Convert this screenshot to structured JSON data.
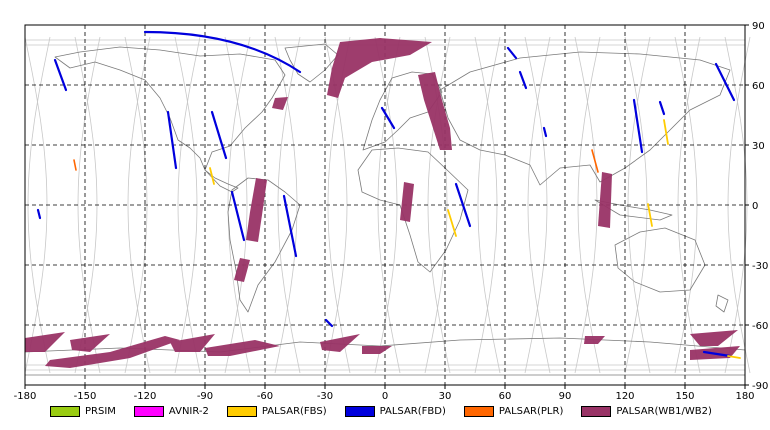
{
  "map": {
    "x_range": [
      -180,
      180
    ],
    "y_range": [
      -90,
      90
    ],
    "x_ticks": [
      "-180",
      "-150",
      "-120",
      "-90",
      "-60",
      "-30",
      "0",
      "30",
      "60",
      "90",
      "120",
      "150",
      "180"
    ],
    "y_ticks": [
      "90",
      "60",
      "30",
      "0",
      "-30",
      "-60",
      "-90"
    ],
    "grid": "dashed"
  },
  "legend": [
    {
      "key": "prsim",
      "label": "PRSIM",
      "color": "#99cc11"
    },
    {
      "key": "avnir2",
      "label": "AVNIR-2",
      "color": "#ff00ff"
    },
    {
      "key": "fbs",
      "label": "PALSAR(FBS)",
      "color": "#ffcc00"
    },
    {
      "key": "fbd",
      "label": "PALSAR(FBD)",
      "color": "#0000dd"
    },
    {
      "key": "plr",
      "label": "PALSAR(PLR)",
      "color": "#ff6600"
    },
    {
      "key": "wb",
      "label": "PALSAR(WB1/WB2)",
      "color": "#993366"
    }
  ]
}
